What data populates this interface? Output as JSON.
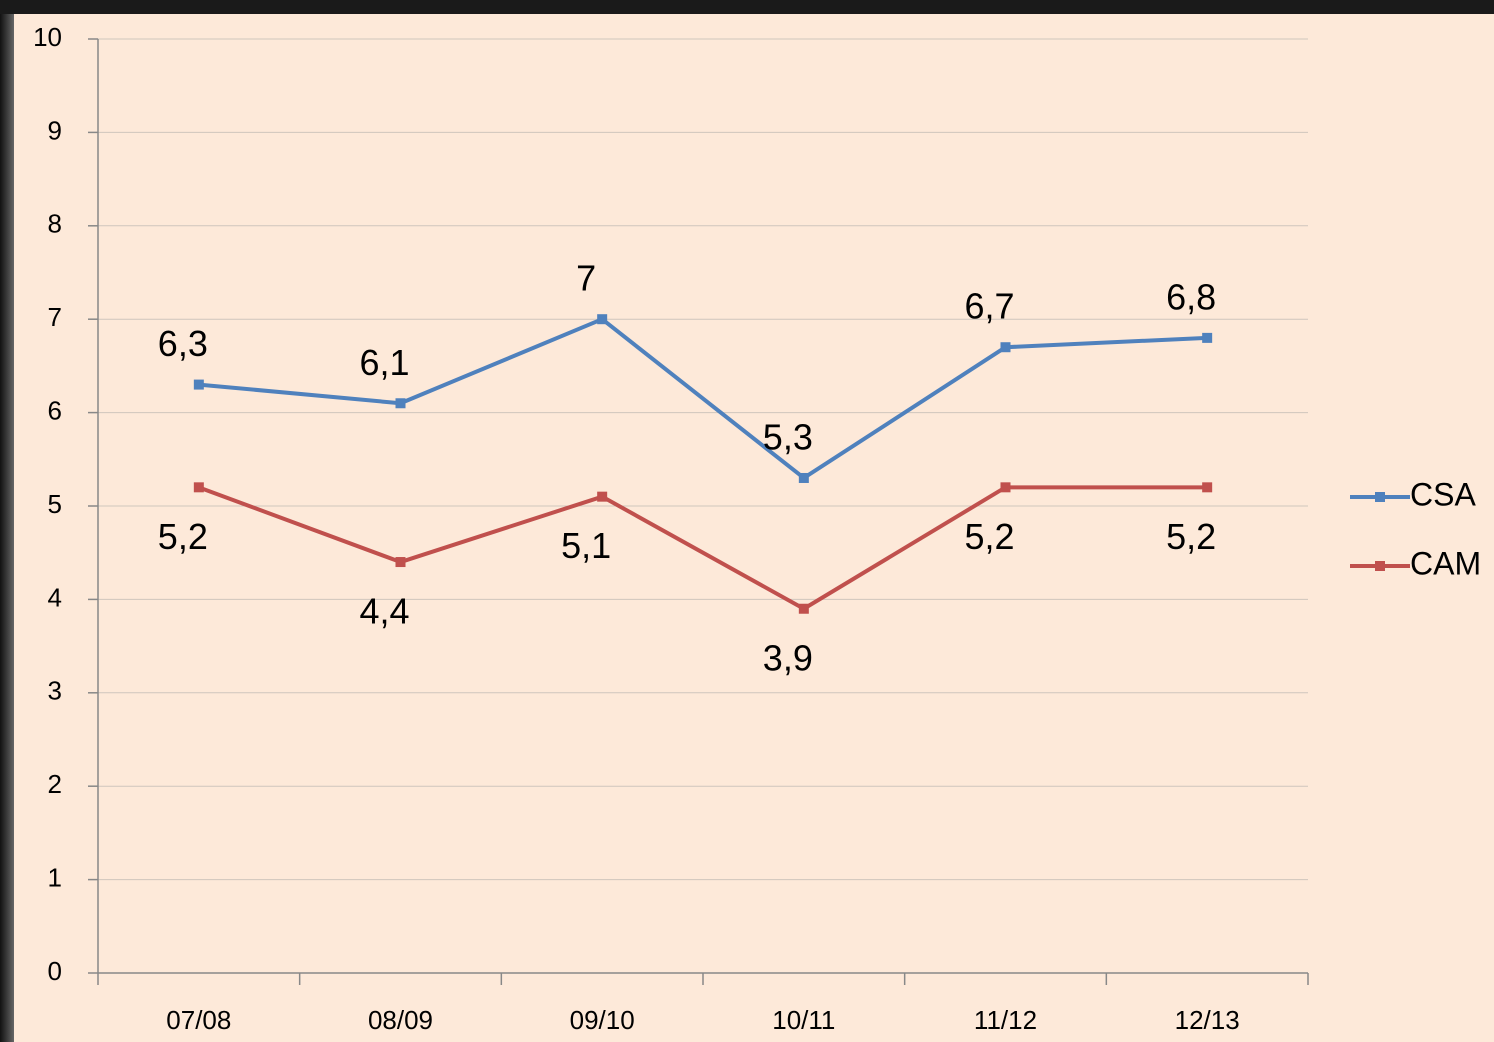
{
  "chart_data": {
    "type": "line",
    "categories": [
      "07/08",
      "08/09",
      "09/10",
      "10/11",
      "11/12",
      "12/13"
    ],
    "series": [
      {
        "name": "CSA",
        "color": "#4f81bd",
        "values": [
          6.3,
          6.1,
          7,
          5.3,
          6.7,
          6.8
        ],
        "value_labels": [
          "6,3",
          "6,1",
          "7",
          "5,3",
          "6,7",
          "6,8"
        ]
      },
      {
        "name": "CAM",
        "color": "#c0504d",
        "values": [
          5.2,
          4.4,
          5.1,
          3.9,
          5.2,
          5.2
        ],
        "value_labels": [
          "5,2",
          "4,4",
          "5,1",
          "3,9",
          "5,2",
          "5,2"
        ]
      }
    ],
    "ylim": [
      0,
      10
    ],
    "yticks": [
      0,
      1,
      2,
      3,
      4,
      5,
      6,
      7,
      8,
      9,
      10
    ],
    "grid": true,
    "legend": "right"
  }
}
